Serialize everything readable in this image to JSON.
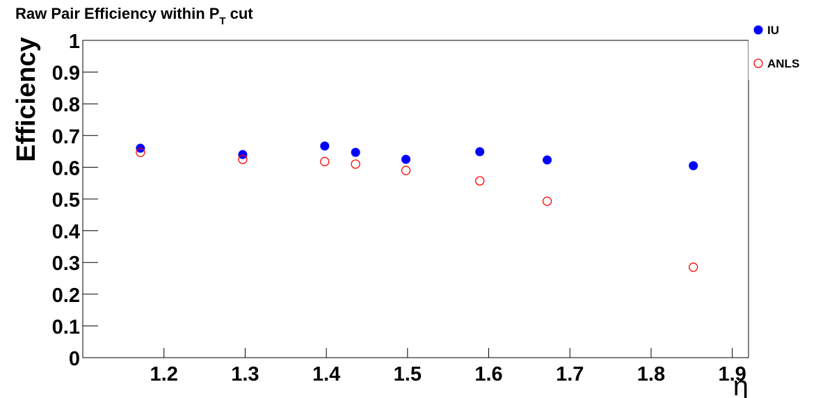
{
  "chart_data": {
    "type": "scatter",
    "title": [
      "Raw Pair Efficiency within P",
      "T",
      "cut"
    ],
    "x_label": "η",
    "y_label": "Efficiency",
    "xlim": [
      1.1,
      1.92
    ],
    "ylim": [
      0,
      1
    ],
    "xticks": [
      1.2,
      1.3,
      1.4,
      1.5,
      1.6,
      1.7,
      1.8,
      1.9
    ],
    "yticks": [
      0,
      0.1,
      0.2,
      0.3,
      0.4,
      0.5,
      0.6,
      0.7,
      0.8,
      0.9,
      1
    ],
    "legend": "top-right",
    "series": [
      {
        "name": "IU",
        "color": "#0000ff",
        "marker": "filled",
        "x": [
          1.171,
          1.297,
          1.398,
          1.436,
          1.498,
          1.589,
          1.672,
          1.852
        ],
        "values": [
          0.66,
          0.64,
          0.667,
          0.647,
          0.625,
          0.649,
          0.623,
          0.605
        ]
      },
      {
        "name": "ANLS",
        "color": "#ff0000",
        "marker": "open",
        "x": [
          1.171,
          1.297,
          1.398,
          1.436,
          1.498,
          1.589,
          1.672,
          1.852
        ],
        "values": [
          0.647,
          0.625,
          0.618,
          0.61,
          0.59,
          0.557,
          0.493,
          0.285
        ]
      }
    ]
  }
}
